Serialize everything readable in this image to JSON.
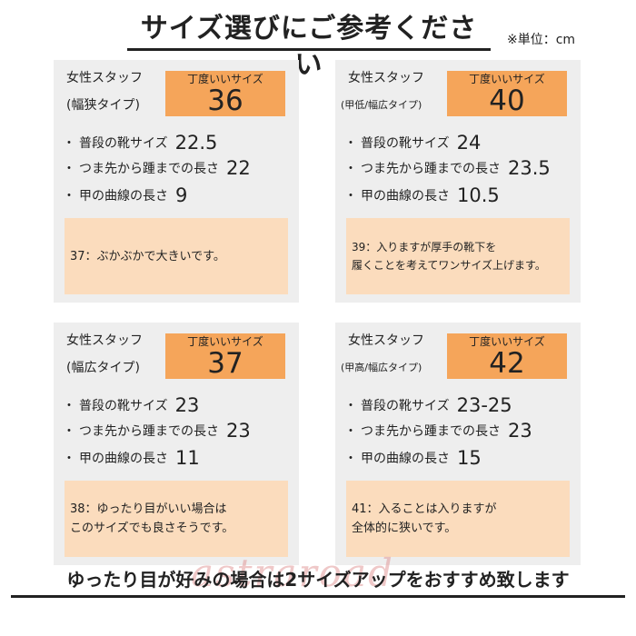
{
  "title": "サイズ選びにご参考ください",
  "unit_note": "※単位：cm",
  "cards": [
    {
      "staff": "女性スタッフ",
      "type": "(幅狭タイプ)",
      "size_label": "丁度いいサイズ",
      "size": "36",
      "rows": [
        {
          "label": "普段の靴サイズ",
          "value": "22.5"
        },
        {
          "label": "つま先から踵までの長さ",
          "value": "22"
        },
        {
          "label": "甲の曲線の長さ",
          "value": "9"
        }
      ],
      "note": [
        "37：ぶかぶかで大きいです。"
      ]
    },
    {
      "staff": "女性スタッフ",
      "type": "(甲低/幅広タイプ)",
      "size_label": "丁度いいサイズ",
      "size": "40",
      "rows": [
        {
          "label": "普段の靴サイズ",
          "value": "24"
        },
        {
          "label": "つま先から踵までの長さ",
          "value": "23.5"
        },
        {
          "label": "甲の曲線の長さ",
          "value": "10.5"
        }
      ],
      "note": [
        "39：入りますが厚手の靴下を",
        "履くことを考えてワンサイズ上げます。"
      ]
    },
    {
      "staff": "女性スタッフ",
      "type": "(幅広タイプ)",
      "size_label": "丁度いいサイズ",
      "size": "37",
      "rows": [
        {
          "label": "普段の靴サイズ",
          "value": "23"
        },
        {
          "label": "つま先から踵までの長さ",
          "value": "23"
        },
        {
          "label": "甲の曲線の長さ",
          "value": "11"
        }
      ],
      "note": [
        "38：ゆったり目がいい場合は",
        "このサイズでも良さそうです。"
      ]
    },
    {
      "staff": "女性スタッフ",
      "type": "(甲高/幅広タイプ)",
      "size_label": "丁度いいサイズ",
      "size": "42",
      "rows": [
        {
          "label": "普段の靴サイズ",
          "value": "23-25"
        },
        {
          "label": "つま先から踵までの長さ",
          "value": "23"
        },
        {
          "label": "甲の曲線の長さ",
          "value": "15"
        }
      ],
      "note": [
        "41：入ることは入りますが",
        "全体的に狭いです。"
      ]
    }
  ],
  "watermark": "astraroad",
  "footer": "ゆったり目が好みの場合は2サイズアップをおすすめ致します"
}
